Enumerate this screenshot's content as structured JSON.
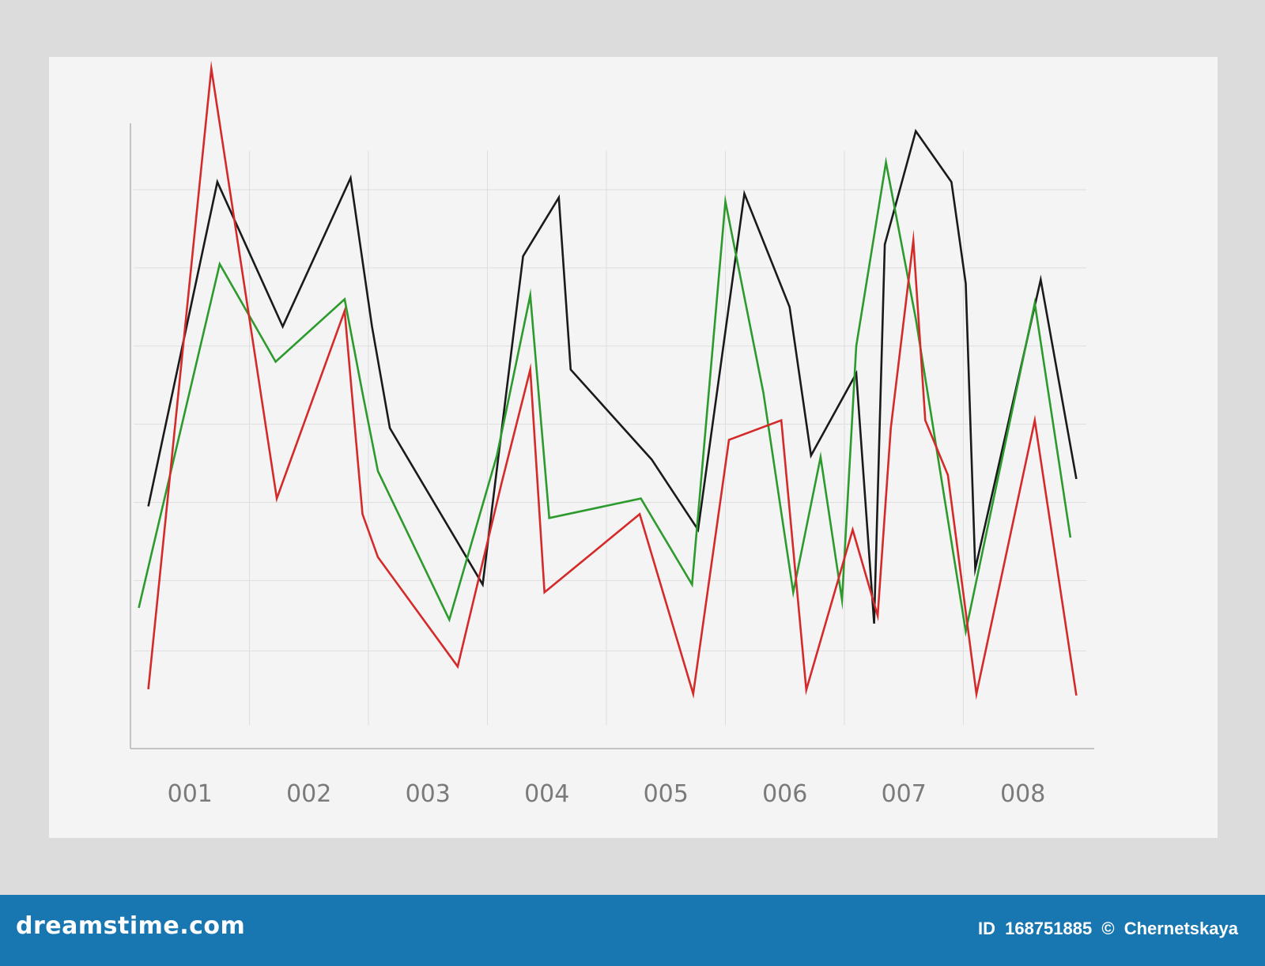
{
  "chart_data": {
    "type": "line",
    "title": "",
    "xlabel": "",
    "ylabel": "",
    "categories": [
      "001",
      "002",
      "003",
      "004",
      "005",
      "006",
      "007",
      "008"
    ],
    "x_range": [
      0.5,
      8.6
    ],
    "ylim": [
      0,
      8
    ],
    "y_gridlines": [
      1.25,
      2.15,
      3.15,
      4.15,
      5.15,
      6.15,
      7.15
    ],
    "x_gridlines": [
      1.5,
      2.5,
      3.5,
      4.5,
      5.5,
      6.5,
      7.5
    ],
    "grid": true,
    "legend": "none",
    "series": [
      {
        "color": "#1a1a1a",
        "points": [
          [
            0.65,
            3.1
          ],
          [
            1.23,
            7.25
          ],
          [
            1.78,
            5.4
          ],
          [
            2.35,
            7.3
          ],
          [
            2.53,
            5.4
          ],
          [
            2.68,
            4.1
          ],
          [
            3.46,
            2.1
          ],
          [
            3.8,
            6.3
          ],
          [
            4.1,
            7.05
          ],
          [
            4.2,
            4.85
          ],
          [
            4.88,
            3.7
          ],
          [
            5.27,
            2.8
          ],
          [
            5.66,
            7.1
          ],
          [
            6.04,
            5.65
          ],
          [
            6.22,
            3.75
          ],
          [
            6.6,
            4.8
          ],
          [
            6.75,
            1.6
          ],
          [
            6.84,
            6.45
          ],
          [
            7.1,
            7.9
          ],
          [
            7.4,
            7.25
          ],
          [
            7.52,
            5.95
          ],
          [
            7.6,
            2.3
          ],
          [
            8.15,
            6
          ],
          [
            8.45,
            3.45
          ]
        ]
      },
      {
        "color": "#2c9a2c",
        "points": [
          [
            0.57,
            1.8
          ],
          [
            1.25,
            6.2
          ],
          [
            1.72,
            4.95
          ],
          [
            2.3,
            5.75
          ],
          [
            2.45,
            4.55
          ],
          [
            2.58,
            3.55
          ],
          [
            3.18,
            1.65
          ],
          [
            3.58,
            3.75
          ],
          [
            3.86,
            5.8
          ],
          [
            4.02,
            2.95
          ],
          [
            4.79,
            3.2
          ],
          [
            5.22,
            2.1
          ],
          [
            5.5,
            7
          ],
          [
            5.82,
            4.55
          ],
          [
            6.07,
            2
          ],
          [
            6.3,
            3.73
          ],
          [
            6.48,
            1.9
          ],
          [
            6.6,
            5.15
          ],
          [
            6.85,
            7.5
          ],
          [
            7.1,
            5.5
          ],
          [
            7.52,
            1.5
          ],
          [
            8.1,
            5.7
          ],
          [
            8.4,
            2.7
          ]
        ]
      },
      {
        "color": "#d42a2a",
        "points": [
          [
            0.65,
            0.76
          ],
          [
            1.18,
            8.7
          ],
          [
            1.73,
            3.2
          ],
          [
            2.3,
            5.6
          ],
          [
            2.45,
            3
          ],
          [
            2.58,
            2.45
          ],
          [
            3.25,
            1.05
          ],
          [
            3.62,
            3.4
          ],
          [
            3.86,
            4.85
          ],
          [
            3.98,
            2
          ],
          [
            4.78,
            3
          ],
          [
            5.23,
            0.7
          ],
          [
            5.53,
            3.95
          ],
          [
            5.97,
            4.2
          ],
          [
            6.18,
            0.75
          ],
          [
            6.57,
            2.8
          ],
          [
            6.78,
            1.7
          ],
          [
            6.89,
            4.1
          ],
          [
            7.08,
            6.5
          ],
          [
            7.18,
            4.2
          ],
          [
            7.37,
            3.5
          ],
          [
            7.61,
            0.7
          ],
          [
            8.1,
            4.2
          ],
          [
            8.45,
            0.68
          ]
        ]
      }
    ]
  },
  "footer": {
    "brand": "dreamstime.com",
    "id_label": "ID",
    "id_value": "168751885",
    "copyright_symbol": "©",
    "author": "Chernetskaya"
  },
  "colors": {
    "footer_bg": "#1877b0",
    "panel_bg": "#f4f4f4",
    "page_bg": "#dcdcdc",
    "grid": "#dedede",
    "axis": "#b4b4b4"
  }
}
